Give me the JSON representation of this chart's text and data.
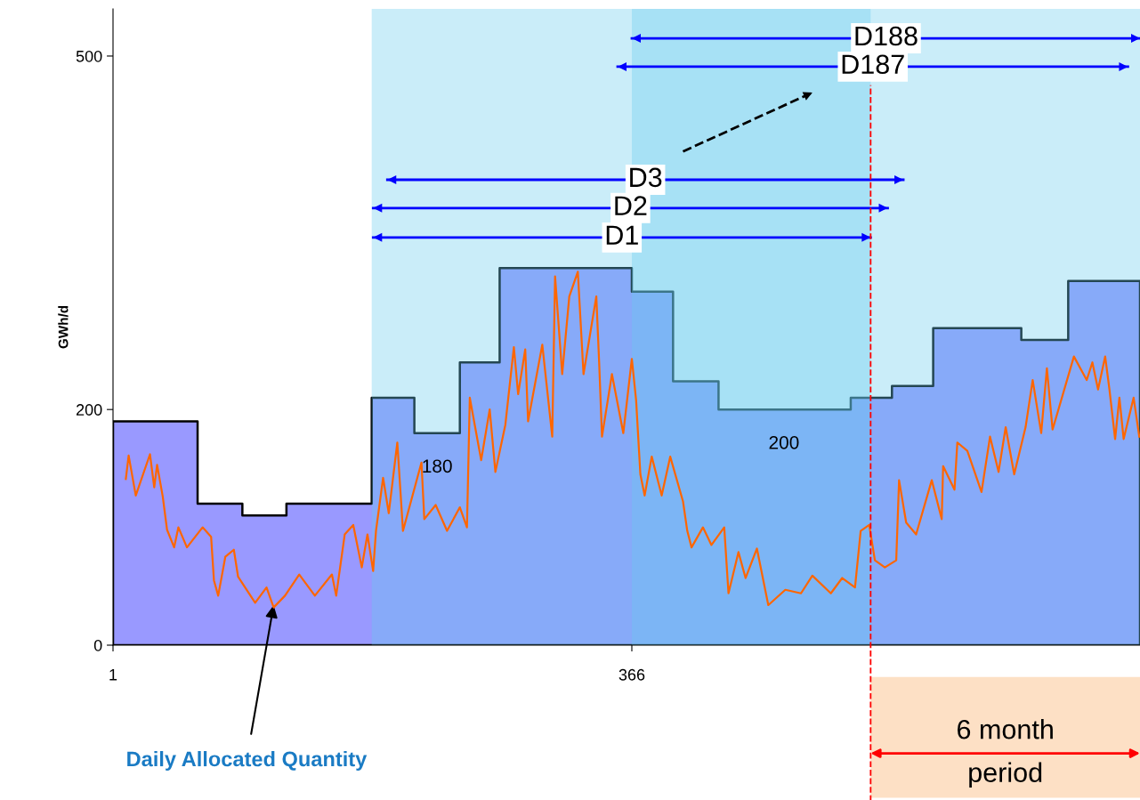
{
  "chart_data": {
    "type": "line",
    "ylabel": "GWh/d",
    "xlim": [
      1,
      723.5
    ],
    "ylim": [
      0,
      540
    ],
    "xticks": [
      1,
      366
    ],
    "yticks": [
      0,
      200,
      500
    ],
    "grid": false,
    "legend": false,
    "series": [
      {
        "type": "area",
        "color": "#9999ff",
        "x": [
          1,
          60.5,
          60.5,
          92,
          92,
          123,
          123,
          183,
          183,
          213,
          213,
          245,
          245,
          273,
          273,
          366,
          366,
          395,
          395,
          427,
          427,
          520,
          520,
          549,
          549,
          578,
          578,
          640,
          640,
          673,
          673,
          723.5
        ],
        "values": [
          190,
          190,
          120,
          120,
          110,
          110,
          120,
          120,
          210,
          210,
          180,
          180,
          240,
          240,
          320,
          320,
          300,
          300,
          224,
          224,
          200,
          200,
          210,
          210,
          220,
          220,
          269,
          269,
          259,
          259,
          309,
          309
        ]
      },
      {
        "color": "#ff6600",
        "x": [
          10,
          12,
          17,
          27,
          30,
          32,
          36,
          39,
          44,
          47,
          53,
          64,
          70,
          72,
          75,
          80,
          86,
          89,
          101,
          109,
          114,
          122,
          132,
          143,
          155,
          158,
          164,
          170,
          176,
          180,
          184,
          186,
          191,
          195,
          201,
          205,
          218,
          220,
          228,
          236,
          245,
          250,
          252,
          260,
          266,
          270,
          277,
          283,
          286,
          291,
          293,
          303,
          310,
          312,
          317,
          322,
          328,
          332,
          341,
          343,
          345,
          352,
          360,
          366,
          369,
          372,
          375,
          380,
          387,
          393,
          402,
          405,
          408,
          416,
          422,
          431,
          434,
          441,
          446,
          454,
          462,
          474,
          485,
          493,
          506,
          514,
          523,
          527,
          533,
          537,
          544,
          552,
          554,
          559,
          566,
          577,
          584,
          585,
          593,
          595,
          602,
          612,
          618,
          624,
          629,
          635,
          643,
          648,
          654,
          658,
          662,
          677,
          686,
          690,
          694,
          699,
          702,
          706,
          709,
          712,
          719,
          723
        ],
        "values": [
          141,
          161,
          127,
          162,
          134,
          153,
          126,
          98,
          83,
          100,
          83,
          100,
          92,
          55,
          42,
          75,
          81,
          58,
          36,
          49,
          32,
          42,
          60,
          42,
          60,
          42,
          94,
          102,
          66,
          94,
          63,
          97,
          142,
          112,
          172,
          97,
          155,
          107,
          119,
          97,
          117,
          100,
          210,
          157,
          200,
          147,
          187,
          253,
          213,
          251,
          190,
          255,
          177,
          313,
          230,
          296,
          317,
          230,
          296,
          240,
          177,
          230,
          180,
          243,
          208,
          145,
          127,
          160,
          127,
          160,
          122,
          97,
          83,
          100,
          85,
          100,
          44,
          79,
          57,
          82,
          34,
          47,
          44,
          59,
          44,
          57,
          49,
          97,
          102,
          72,
          66,
          72,
          140,
          104,
          94,
          140,
          107,
          152,
          132,
          172,
          165,
          130,
          177,
          147,
          185,
          145,
          185,
          225,
          180,
          235,
          183,
          245,
          225,
          240,
          217,
          245,
          217,
          175,
          210,
          175,
          210,
          177
        ]
      },
      {
        "type": "line",
        "name": "D1",
        "color": "#0000ff",
        "x": [
          184,
          534
        ],
        "values": [
          346,
          346
        ]
      },
      {
        "type": "line",
        "name": "D2",
        "color": "#0000ff",
        "x": [
          184,
          546
        ],
        "values": [
          371,
          371
        ]
      },
      {
        "type": "line",
        "name": "D3",
        "color": "#0000ff",
        "x": [
          194,
          557
        ],
        "values": [
          395,
          395
        ]
      },
      {
        "type": "line",
        "name": "D187",
        "color": "#0000ff",
        "x": [
          356,
          715
        ],
        "values": [
          491,
          491
        ]
      },
      {
        "type": "line",
        "name": "D188",
        "color": "#0000ff",
        "x": [
          366,
          723.5
        ],
        "values": [
          515,
          515
        ]
      },
      {
        "type": "line",
        "color": "#000000",
        "line_style": "dashed",
        "x": [
          402,
          493
        ],
        "values": [
          419,
          469
        ]
      }
    ],
    "bands": [
      {
        "axis": "x",
        "from": 183,
        "to": 534,
        "color": "#66ccee"
      },
      {
        "axis": "x",
        "from": 366,
        "to": 723.5,
        "color": "#66ccee"
      }
    ],
    "ref_lines": [
      {
        "axis": "x",
        "value": 534,
        "color": "#ff0000",
        "line_style": "dashed"
      }
    ],
    "annotations": [
      {
        "text": "Daily Allocated Quantity",
        "x": 114,
        "y": 34
      },
      {
        "text": "180",
        "x": 229,
        "y": 180
      },
      {
        "text": "200",
        "x": 473,
        "y": 200
      },
      "6 month\nperiod"
    ]
  }
}
